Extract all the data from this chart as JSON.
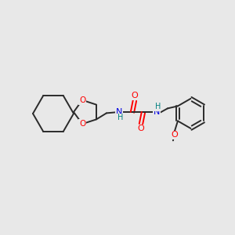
{
  "bg_color": "#e8e8e8",
  "bond_color": "#2a2a2a",
  "oxygen_color": "#ff0000",
  "nitrogen_color": "#0000e0",
  "hydrogen_color": "#008080",
  "bond_width": 1.4,
  "figsize": [
    3.0,
    3.0
  ],
  "dpi": 100,
  "xlim": [
    0,
    300
  ],
  "ylim": [
    0,
    300
  ]
}
